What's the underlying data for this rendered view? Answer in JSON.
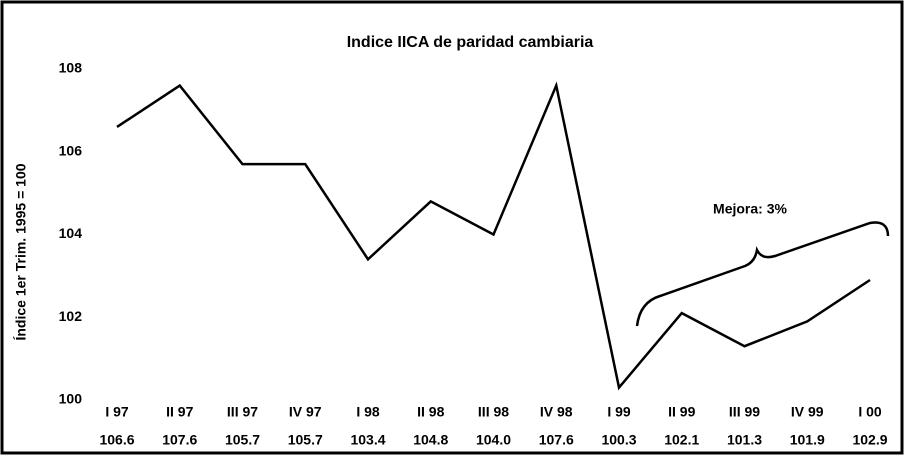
{
  "chart_data": {
    "type": "line",
    "title": "Indice IICA de paridad cambiaria",
    "ylabel": "Índice 1er Trim. 1995 = 100",
    "categories": [
      "I 97",
      "II 97",
      "III 97",
      "IV 97",
      "I 98",
      "II 98",
      "III 98",
      "IV 98",
      "I 99",
      "II 99",
      "III 99",
      "IV 99",
      "I 00"
    ],
    "values": [
      106.6,
      107.6,
      105.7,
      105.7,
      103.4,
      104.8,
      104.0,
      107.6,
      100.3,
      102.1,
      101.3,
      101.9,
      102.9
    ],
    "value_labels": [
      "106.6",
      "107.6",
      "105.7",
      "105.7",
      "103.4",
      "104.8",
      "104.0",
      "107.6",
      "100.3",
      "102.1",
      "101.3",
      "101.9",
      "102.9"
    ],
    "color": "#000000",
    "ylim": [
      100,
      108
    ],
    "yticks": [
      100,
      102,
      104,
      106,
      108
    ],
    "annotation": "Mejora: 3%"
  }
}
